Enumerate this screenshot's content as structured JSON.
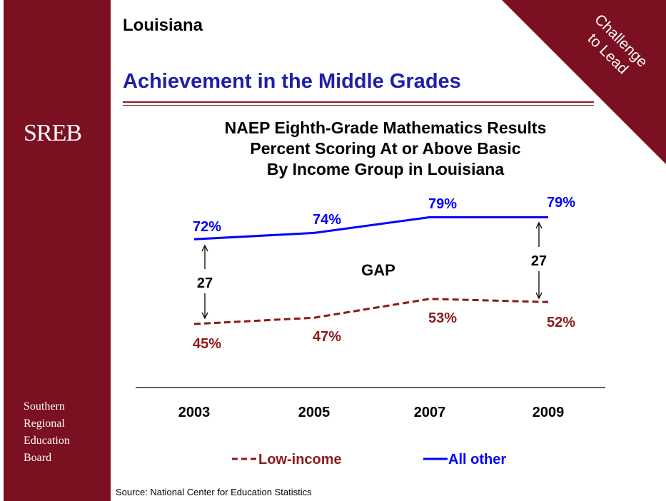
{
  "header": {
    "state": "Louisiana",
    "title": "Achievement in the Middle Grades",
    "banner_line1": "Challenge",
    "banner_line2": "to Lead"
  },
  "sidebar": {
    "logo": "SREB",
    "org_lines": [
      "Southern",
      "Regional",
      "Education",
      "Board"
    ]
  },
  "colors": {
    "brand": "#7b1020",
    "title_blue": "#1f1fa8",
    "all_other": "#0000ff",
    "low_income": "#8b1a1a"
  },
  "chart_data": {
    "type": "line",
    "title_lines": [
      "NAEP Eighth-Grade Mathematics Results",
      "Percent Scoring At or Above Basic",
      "By Income Group in Louisiana"
    ],
    "categories": [
      "2003",
      "2005",
      "2007",
      "2009"
    ],
    "series": [
      {
        "name": "Low-income",
        "values": [
          45,
          47,
          53,
          52
        ],
        "labels": [
          "45%",
          "47%",
          "53%",
          "52%"
        ],
        "color": "#8b1a1a",
        "style": "dashed"
      },
      {
        "name": "All other",
        "values": [
          72,
          74,
          79,
          79
        ],
        "labels": [
          "72%",
          "74%",
          "79%",
          "79%"
        ],
        "color": "#0000ff",
        "style": "solid"
      }
    ],
    "gap_label": "GAP",
    "gap_annotations": [
      {
        "category": "2003",
        "value": "27"
      },
      {
        "category": "2009",
        "value": "27"
      }
    ],
    "legend_position": "bottom",
    "grid": false
  },
  "footer": {
    "source": "Source: National Center for Education Statistics"
  }
}
